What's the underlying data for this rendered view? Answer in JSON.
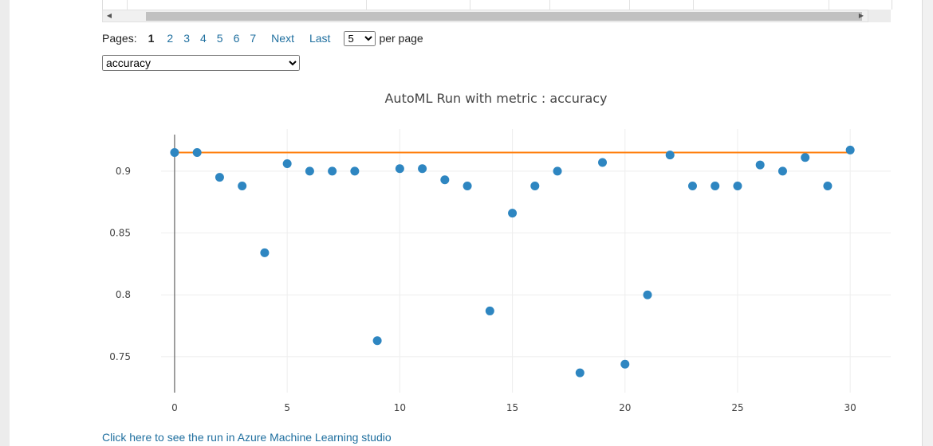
{
  "pager": {
    "label": "Pages:",
    "current": "1",
    "pages": [
      "2",
      "3",
      "4",
      "5",
      "6",
      "7"
    ],
    "next": "Next",
    "last": "Last",
    "per_page_value": "5",
    "per_page_label": "per page"
  },
  "metric_select": {
    "value": "accuracy"
  },
  "footer": {
    "link_text": "Click here to see the run in Azure Machine Learning studio"
  },
  "chart_data": {
    "type": "scatter",
    "title": "AutoML Run with metric : accuracy",
    "xlabel": "",
    "ylabel": "",
    "xlim": [
      -0.6,
      31.8
    ],
    "ylim": [
      0.721,
      0.934
    ],
    "x_ticks": [
      "0",
      "5",
      "10",
      "15",
      "20",
      "25",
      "30"
    ],
    "y_ticks": [
      "0.75",
      "0.8",
      "0.85",
      "0.9"
    ],
    "grid": true,
    "colors": {
      "points": "#2e86c1",
      "best_line": "#ff7f0e"
    },
    "series": [
      {
        "type": "scatter",
        "x": [
          0,
          1,
          2,
          3,
          4,
          5,
          6,
          7,
          8,
          9,
          10,
          11,
          12,
          13,
          14,
          15,
          16,
          17,
          18,
          19,
          20,
          21,
          22,
          23,
          24,
          25,
          26,
          27,
          28,
          29,
          30
        ],
        "y": [
          0.915,
          0.915,
          0.895,
          0.888,
          0.834,
          0.906,
          0.9,
          0.9,
          0.9,
          0.763,
          0.902,
          0.902,
          0.893,
          0.888,
          0.787,
          0.866,
          0.888,
          0.9,
          0.737,
          0.907,
          0.744,
          0.8,
          0.913,
          0.888,
          0.888,
          0.888,
          0.905,
          0.9,
          0.911,
          0.888,
          0.917
        ]
      },
      {
        "type": "line",
        "x": [
          0,
          30
        ],
        "y": [
          0.915,
          0.915
        ]
      }
    ]
  }
}
